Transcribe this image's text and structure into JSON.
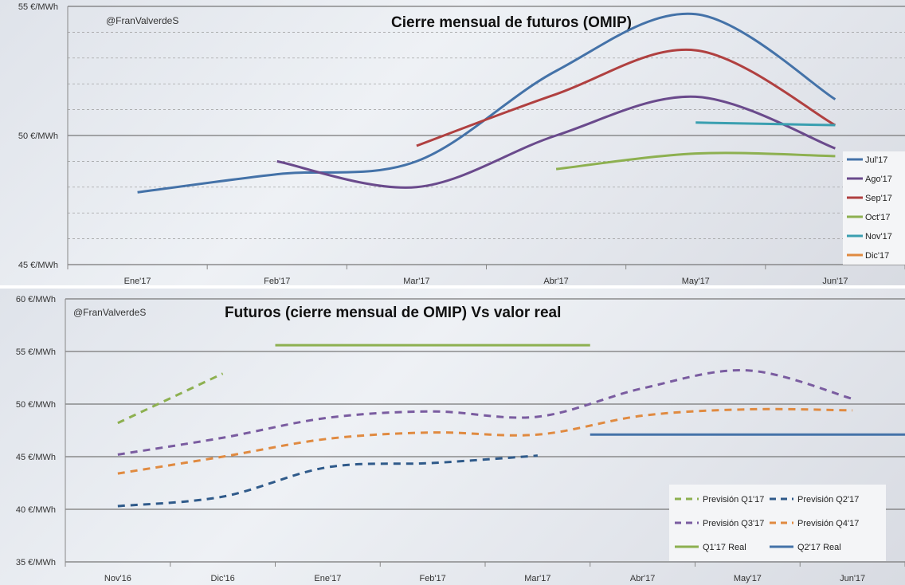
{
  "chart_data": [
    {
      "type": "line",
      "title": "Cierre mensual de futuros (OMIP)",
      "watermark": "@FranValverdeS",
      "categories": [
        "Ene'17",
        "Feb'17",
        "Mar'17",
        "Abr'17",
        "May'17",
        "Jun'17"
      ],
      "ylim": [
        45,
        55
      ],
      "yticks": [
        {
          "v": 45,
          "label": "45 €/MWh"
        },
        {
          "v": 50,
          "label": "50 €/MWh"
        },
        {
          "v": 55,
          "label": "55 €/MWh"
        }
      ],
      "legend_position": "right",
      "series": [
        {
          "name": "Jul'17",
          "color": "#4472a8",
          "dashed": false,
          "values": [
            47.8,
            48.5,
            49.0,
            52.5,
            54.7,
            51.4
          ]
        },
        {
          "name": "Ago'17",
          "color": "#6a4a8c",
          "dashed": false,
          "values": [
            null,
            49.0,
            48.0,
            50.0,
            51.5,
            49.5
          ]
        },
        {
          "name": "Sep'17",
          "color": "#b04040",
          "dashed": false,
          "values": [
            null,
            null,
            49.6,
            51.6,
            53.3,
            50.4
          ]
        },
        {
          "name": "Oct'17",
          "color": "#8db050",
          "dashed": false,
          "values": [
            null,
            null,
            null,
            48.7,
            49.3,
            49.2
          ]
        },
        {
          "name": "Nov'17",
          "color": "#3a9fb0",
          "dashed": false,
          "values": [
            null,
            null,
            null,
            null,
            50.5,
            50.4
          ]
        },
        {
          "name": "Dic'17",
          "color": "#e08a40",
          "dashed": false,
          "values": [
            null,
            null,
            null,
            null,
            null,
            null
          ]
        }
      ]
    },
    {
      "type": "line",
      "title": "Futuros (cierre mensual de OMIP) Vs valor real",
      "watermark": "@FranValverdeS",
      "categories": [
        "Nov'16",
        "Dic'16",
        "Ene'17",
        "Feb'17",
        "Mar'17",
        "Abr'17",
        "May'17",
        "Jun'17"
      ],
      "ylim": [
        35,
        60
      ],
      "yticks": [
        {
          "v": 35,
          "label": "35 €/MWh"
        },
        {
          "v": 40,
          "label": "40 €/MWh"
        },
        {
          "v": 45,
          "label": "45 €/MWh"
        },
        {
          "v": 50,
          "label": "50 €/MWh"
        },
        {
          "v": 55,
          "label": "55 €/MWh"
        },
        {
          "v": 60,
          "label": "60 €/MWh"
        }
      ],
      "legend_position": "bottom-right",
      "series": [
        {
          "name": "Previsión Q1'17",
          "color": "#8db050",
          "dashed": true,
          "values": [
            48.2,
            52.9,
            null,
            null,
            null,
            null,
            null,
            null
          ]
        },
        {
          "name": "Previsión Q2'17",
          "color": "#2f5a8a",
          "dashed": true,
          "values": [
            40.3,
            41.2,
            44.0,
            44.4,
            45.1,
            null,
            null,
            null
          ]
        },
        {
          "name": "Previsión Q3'17",
          "color": "#7a5ca0",
          "dashed": true,
          "values": [
            45.2,
            46.8,
            48.7,
            49.3,
            48.8,
            51.5,
            53.2,
            50.5
          ]
        },
        {
          "name": "Previsión Q4'17",
          "color": "#e08a40",
          "dashed": true,
          "values": [
            43.4,
            45.0,
            46.7,
            47.3,
            47.1,
            48.9,
            49.5,
            49.4
          ]
        },
        {
          "name": "Q1'17 Real",
          "color": "#8db050",
          "dashed": false,
          "values": [
            null,
            null,
            55.6,
            55.6,
            55.6,
            null,
            null,
            null
          ]
        },
        {
          "name": "Q2'17 Real",
          "color": "#4472a8",
          "dashed": false,
          "values": [
            null,
            null,
            null,
            null,
            null,
            47.1,
            47.1,
            47.1
          ]
        }
      ]
    }
  ]
}
